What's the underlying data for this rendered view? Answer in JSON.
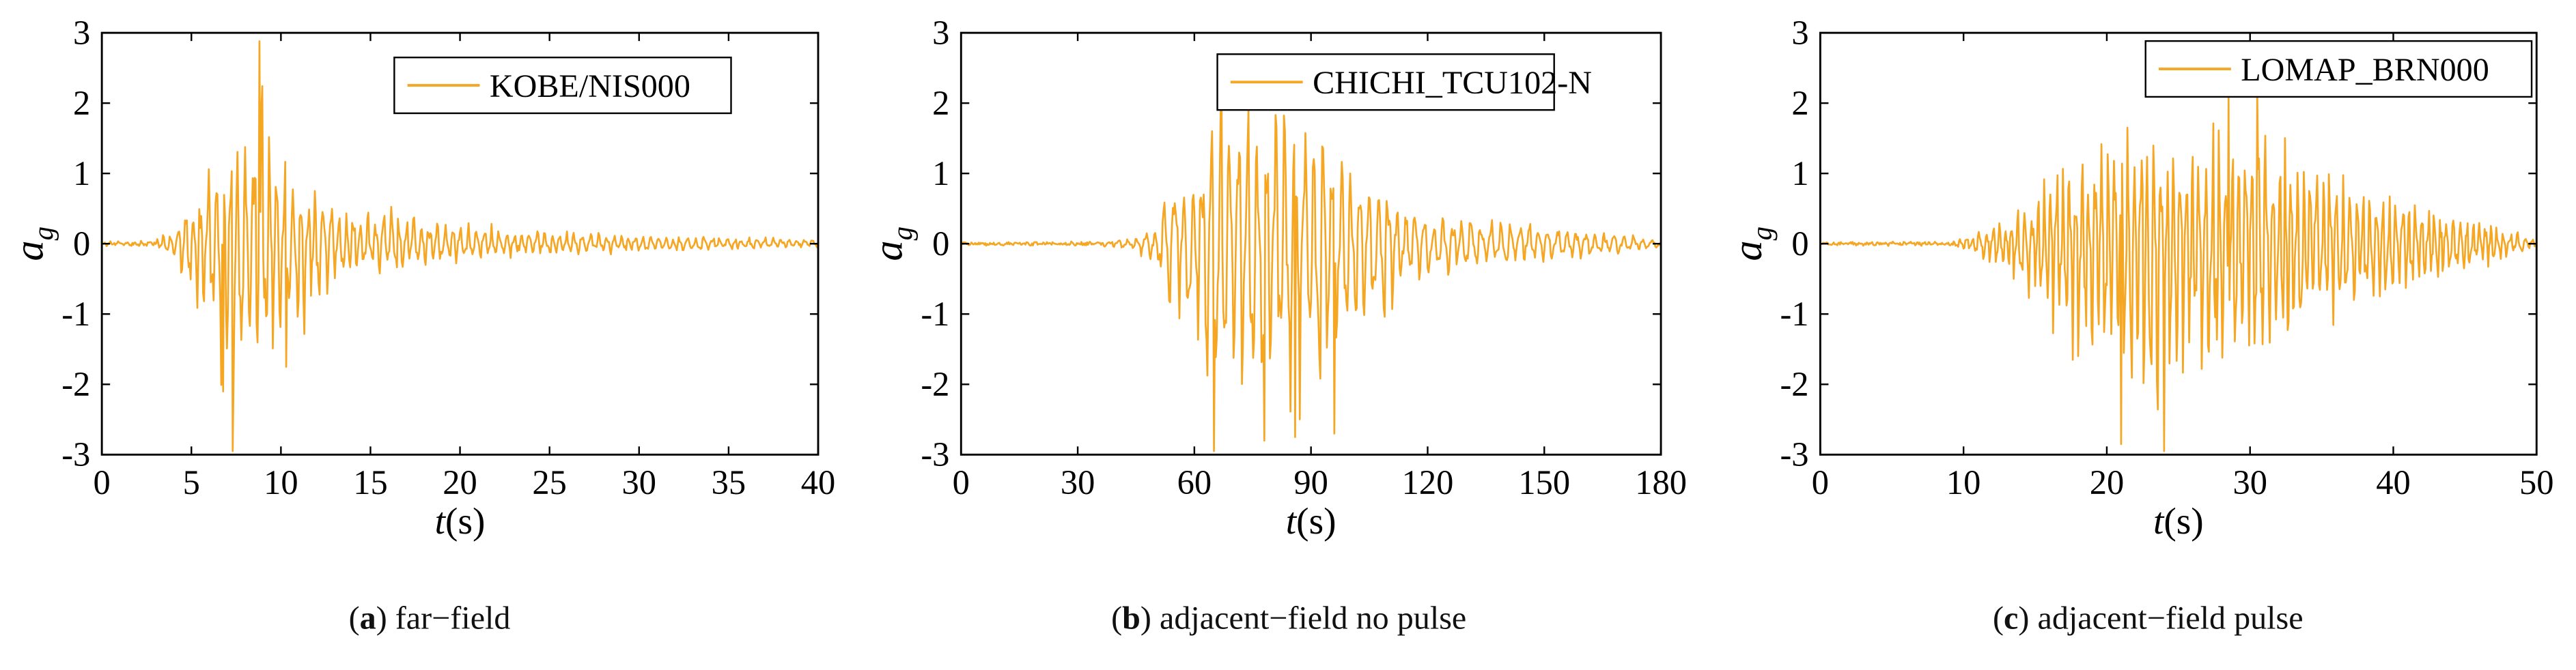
{
  "figure": {
    "line_color": "#f5a623",
    "panels": [
      {
        "caption_letter": "a",
        "caption_text": "far−field",
        "legend": "KOBE/NIS000",
        "xlabel_var": "t",
        "xlabel_unit": "(s)",
        "ylabel_var": "a",
        "ylabel_sub": "g"
      },
      {
        "caption_letter": "b",
        "caption_text": "adjacent−field no pulse",
        "legend": "CHICHI_TCU102-N",
        "xlabel_var": "t",
        "xlabel_unit": "(s)",
        "ylabel_var": "a",
        "ylabel_sub": "g"
      },
      {
        "caption_letter": "c",
        "caption_text": "adjacent−field pulse",
        "legend": "LOMAP_BRN000",
        "xlabel_var": "t",
        "xlabel_unit": "(s)",
        "ylabel_var": "a",
        "ylabel_sub": "g"
      }
    ]
  },
  "chart_data": [
    {
      "type": "line",
      "title": "",
      "series_name": "KOBE/NIS000",
      "xlabel": "t(s)",
      "ylabel": "a_g",
      "xlim": [
        0,
        40
      ],
      "ylim": [
        -3,
        3
      ],
      "xticks": [
        0,
        5,
        10,
        15,
        20,
        25,
        30,
        35,
        40
      ],
      "yticks": [
        -3,
        -2,
        -1,
        0,
        1,
        2,
        3
      ],
      "envelope": {
        "t": [
          0,
          3,
          4.2,
          4.8,
          5.5,
          6.5,
          7.3,
          8,
          8.8,
          9.6,
          10.5,
          12,
          13.5,
          15,
          16,
          17,
          20,
          23,
          27,
          32,
          36,
          40
        ],
        "pos": [
          0.02,
          0.05,
          0.3,
          0.9,
          1.0,
          1.6,
          1.9,
          2.0,
          2.88,
          1.55,
          1.25,
          0.85,
          0.6,
          0.45,
          0.75,
          0.45,
          0.35,
          0.25,
          0.18,
          0.12,
          0.1,
          0.06
        ],
        "neg": [
          0.02,
          0.05,
          0.3,
          0.8,
          1.0,
          2.2,
          2.95,
          2.1,
          1.9,
          1.8,
          1.7,
          1.0,
          0.7,
          0.45,
          0.55,
          0.4,
          0.3,
          0.22,
          0.15,
          0.12,
          0.08,
          0.06
        ]
      },
      "peaks": [
        [
          7.3,
          -2.95
        ],
        [
          8.8,
          2.88
        ],
        [
          6.8,
          -2.1
        ],
        [
          10.3,
          -1.75
        ]
      ],
      "cycle_period_s": 0.42,
      "samples": 750
    },
    {
      "type": "line",
      "title": "",
      "series_name": "CHICHI_TCU102-N",
      "xlabel": "t(s)",
      "ylabel": "a_g",
      "xlim": [
        0,
        180
      ],
      "ylim": [
        -3,
        3
      ],
      "xticks": [
        0,
        30,
        60,
        90,
        120,
        150,
        180
      ],
      "yticks": [
        -3,
        -2,
        -1,
        0,
        1,
        2,
        3
      ],
      "envelope": {
        "t": [
          0,
          35,
          45,
          50,
          55,
          60,
          65,
          72,
          80,
          88,
          93,
          98,
          105,
          110,
          113,
          120,
          135,
          150,
          165,
          180
        ],
        "pos": [
          0.01,
          0.02,
          0.1,
          0.3,
          1.2,
          1.0,
          2.5,
          2.3,
          2.2,
          2.1,
          2.2,
          1.5,
          1.1,
          1.0,
          0.6,
          0.45,
          0.4,
          0.3,
          0.2,
          0.05
        ],
        "neg": [
          0.01,
          0.02,
          0.1,
          0.35,
          1.3,
          1.4,
          2.95,
          2.5,
          2.8,
          2.7,
          2.75,
          1.9,
          1.2,
          1.6,
          0.7,
          0.5,
          0.4,
          0.3,
          0.2,
          0.05
        ]
      },
      "peaks": [
        [
          65,
          -2.95
        ],
        [
          78,
          -2.8
        ],
        [
          86,
          -2.75
        ],
        [
          96,
          -2.7
        ],
        [
          67,
          2.5
        ]
      ],
      "cycle_period_s": 2.4,
      "samples": 750
    },
    {
      "type": "line",
      "title": "",
      "series_name": "LOMAP_BRN000",
      "xlabel": "t(s)",
      "ylabel": "a_g",
      "xlim": [
        0,
        50
      ],
      "ylim": [
        -3,
        3
      ],
      "xticks": [
        0,
        10,
        20,
        30,
        40,
        50
      ],
      "yticks": [
        -3,
        -2,
        -1,
        0,
        1,
        2,
        3
      ],
      "envelope": {
        "t": [
          0,
          9,
          11,
          13,
          15,
          16.5,
          18,
          20,
          22,
          24,
          26,
          28,
          30,
          32,
          34,
          36,
          38,
          41,
          44,
          47,
          50
        ],
        "pos": [
          0.01,
          0.02,
          0.2,
          0.4,
          0.7,
          1.4,
          1.2,
          1.7,
          1.8,
          1.6,
          1.7,
          2.1,
          2.2,
          1.7,
          1.4,
          1.3,
          0.9,
          0.7,
          0.5,
          0.3,
          0.05
        ],
        "neg": [
          0.01,
          0.02,
          0.2,
          0.5,
          0.9,
          1.5,
          1.9,
          2.5,
          2.85,
          2.95,
          2.0,
          2.3,
          2.1,
          2.4,
          1.6,
          1.3,
          1.1,
          0.8,
          0.6,
          0.3,
          0.05
        ]
      },
      "peaks": [
        [
          21,
          -2.85
        ],
        [
          24,
          -2.95
        ],
        [
          30.5,
          2.2
        ],
        [
          28.5,
          2.1
        ]
      ],
      "cycle_period_s": 0.45,
      "samples": 800
    }
  ]
}
